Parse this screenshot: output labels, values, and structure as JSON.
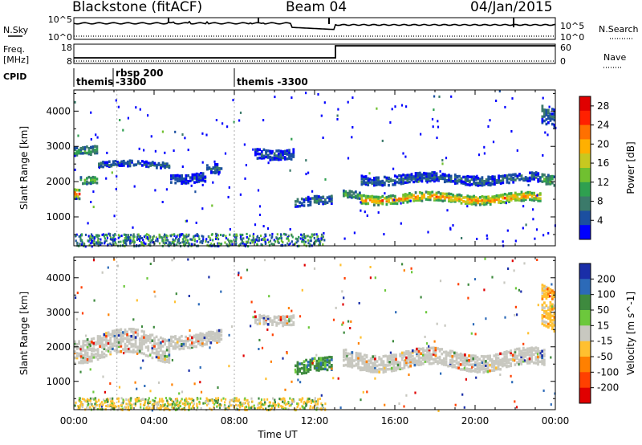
{
  "header": {
    "station": "Blackstone (fitACF)",
    "beam": "Beam 04",
    "date": "04/Jan/2015"
  },
  "top_panels": {
    "nsky_label": "N.Sky",
    "nsearch_label": "N.Search",
    "nsky_ticks": [
      "10^5",
      "10^0"
    ],
    "nsearch_ticks": [
      "10^5",
      "10^0"
    ],
    "freq_label": "Freq.",
    "freq_unit": "[MHz]",
    "freq_ticks": [
      "18",
      "8"
    ],
    "nave_label": "Nave",
    "nave_ticks": [
      "60",
      "0"
    ],
    "cpid_label": "CPID",
    "cpid_segments": [
      {
        "line1": "themis",
        "line2": ""
      },
      {
        "line1": "rbsp 200",
        "line2": "-3300"
      },
      {
        "line1": "themis -3300",
        "line2": ""
      }
    ]
  },
  "chart_data": [
    {
      "type": "heatmap",
      "title": "",
      "xlabel": "Time UT",
      "ylabel": "Slant Range [km]",
      "x_ticks": [
        "00:00",
        "04:00",
        "08:00",
        "12:00",
        "16:00",
        "20:00",
        "00:00"
      ],
      "y_ticks": [
        1000,
        2000,
        3000,
        4000
      ],
      "xlim": [
        0,
        24
      ],
      "ylim": [
        180,
        4600
      ],
      "colorbar": {
        "label": "Power [dB]",
        "ticks": [
          4,
          8,
          12,
          16,
          20,
          24,
          28
        ],
        "range": [
          0,
          30
        ],
        "colors": [
          "#0000ff",
          "#1b4fa0",
          "#3b7a6a",
          "#2fa050",
          "#70c030",
          "#c8c820",
          "#ffb000",
          "#ff7000",
          "#ff2000",
          "#e00000"
        ]
      },
      "bands": [
        {
          "start": 0.0,
          "end": 0.3,
          "center": 1700,
          "width": 300,
          "level": 24
        },
        {
          "start": 0.3,
          "end": 1.2,
          "center": 2050,
          "width": 220,
          "level": 14
        },
        {
          "start": 0.0,
          "end": 1.2,
          "center": 2900,
          "width": 260,
          "level": 10
        },
        {
          "start": 1.2,
          "end": 4.8,
          "center": 2450,
          "width": 160,
          "level": 6
        },
        {
          "start": 4.8,
          "end": 6.6,
          "center": 2100,
          "width": 260,
          "level": 5
        },
        {
          "start": 6.6,
          "end": 7.4,
          "center": 2300,
          "width": 260,
          "level": 6
        },
        {
          "start": 9.0,
          "end": 11.0,
          "center": 2800,
          "width": 300,
          "level": 5
        },
        {
          "start": 11.0,
          "end": 12.9,
          "center": 1400,
          "width": 250,
          "level": 7
        },
        {
          "start": 13.4,
          "end": 14.3,
          "center": 1600,
          "width": 200,
          "level": 12
        },
        {
          "start": 14.3,
          "end": 23.3,
          "center": 1500,
          "width": 260,
          "level": 22
        },
        {
          "start": 14.3,
          "end": 23.3,
          "center": 2050,
          "width": 260,
          "level": 6
        },
        {
          "start": 23.3,
          "end": 24.0,
          "center": 2000,
          "width": 300,
          "level": 12
        },
        {
          "start": 23.3,
          "end": 24.0,
          "center": 3800,
          "width": 600,
          "level": 6
        }
      ]
    },
    {
      "type": "heatmap",
      "title": "",
      "xlabel": "Time UT",
      "ylabel": "Slant Range [km]",
      "x_ticks": [
        "00:00",
        "04:00",
        "08:00",
        "12:00",
        "16:00",
        "20:00",
        "00:00"
      ],
      "y_ticks": [
        1000,
        2000,
        3000,
        4000
      ],
      "xlim": [
        0,
        24
      ],
      "ylim": [
        180,
        4600
      ],
      "colorbar": {
        "label": "Velocity [m s^-1]",
        "ticks": [
          200,
          100,
          50,
          15,
          -15,
          -50,
          -100,
          -200
        ],
        "colors": [
          "#1a2ea8",
          "#2c6ab8",
          "#3e8a3e",
          "#6cc83c",
          "#c8c8c0",
          "#ffc030",
          "#ff8000",
          "#ff4000",
          "#e00000"
        ]
      },
      "bands": [
        {
          "start": 0.0,
          "end": 4.8,
          "center": 2000,
          "width": 700,
          "level": "ground"
        },
        {
          "start": 4.8,
          "end": 7.4,
          "center": 2200,
          "width": 400,
          "level": "ground"
        },
        {
          "start": 9.0,
          "end": 11.0,
          "center": 2800,
          "width": 300,
          "level": "ground"
        },
        {
          "start": 11.0,
          "end": 12.9,
          "center": 1400,
          "width": 400,
          "level": 50
        },
        {
          "start": 13.4,
          "end": 23.5,
          "center": 1600,
          "width": 500,
          "level": "ground"
        },
        {
          "start": 23.3,
          "end": 24.0,
          "center": 3000,
          "width": 1200,
          "level": -50
        }
      ]
    }
  ]
}
